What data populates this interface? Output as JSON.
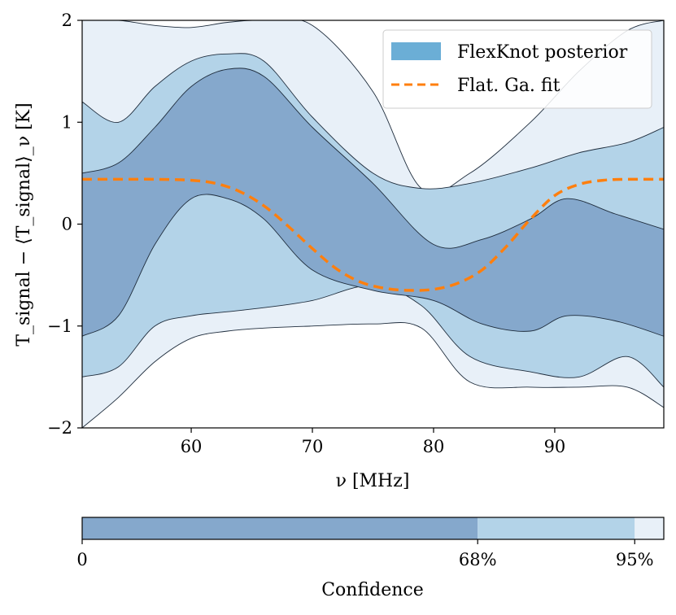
{
  "chart_data": [
    {
      "type": "area",
      "title": "",
      "xlabel": "ν [MHz]",
      "ylabel": "T_signal − ⟨T_signal⟩_ν [K]",
      "xlim": [
        51,
        99
      ],
      "ylim": [
        -2,
        2
      ],
      "xticks": [
        60,
        70,
        80,
        90
      ],
      "yticks": [
        -2,
        -1,
        0,
        1,
        2
      ],
      "ytick_labels": [
        "−2",
        "−1",
        "0",
        "1",
        "2"
      ],
      "grid": false,
      "legend_position": "top-right",
      "legend": [
        {
          "label": "FlexKnot posterior",
          "kind": "patch",
          "color": "#6baed6"
        },
        {
          "label": "Flat. Ga. fit",
          "kind": "dashed-line",
          "color": "#ff7f0e"
        }
      ],
      "series": [
        {
          "name": "Flat. Ga. fit",
          "color": "#ff7f0e",
          "style": "dashed",
          "x": [
            51,
            54,
            57,
            60,
            62,
            64,
            66,
            68,
            70,
            72,
            74,
            76,
            78,
            80,
            82,
            84,
            86,
            88,
            90,
            92,
            94,
            96,
            99
          ],
          "y": [
            0.44,
            0.44,
            0.44,
            0.43,
            0.4,
            0.32,
            0.18,
            -0.02,
            -0.24,
            -0.44,
            -0.57,
            -0.63,
            -0.65,
            -0.64,
            -0.58,
            -0.45,
            -0.22,
            0.05,
            0.28,
            0.39,
            0.43,
            0.44,
            0.44
          ]
        },
        {
          "name": "68% band",
          "color": "#85a8cc",
          "x": [
            51,
            54,
            57,
            60,
            63,
            66,
            70,
            75,
            80,
            84,
            88,
            91,
            95,
            99
          ],
          "upper": [
            0.5,
            0.6,
            0.95,
            1.35,
            1.52,
            1.45,
            0.95,
            0.4,
            -0.2,
            -0.15,
            0.05,
            0.25,
            0.1,
            -0.05
          ],
          "lower": [
            -1.1,
            -0.9,
            -0.2,
            0.25,
            0.25,
            0.05,
            -0.45,
            -0.65,
            -0.75,
            -0.98,
            -1.05,
            -0.9,
            -0.95,
            -1.1
          ]
        },
        {
          "name": "95% band",
          "color": "#b3d3e8",
          "x": [
            51,
            54,
            57,
            60,
            63,
            66,
            70,
            75,
            79,
            83,
            88,
            92,
            96,
            99
          ],
          "upper": [
            1.2,
            1.0,
            1.35,
            1.6,
            1.67,
            1.6,
            1.05,
            0.5,
            0.35,
            0.4,
            0.55,
            0.7,
            0.8,
            0.95
          ],
          "lower": [
            -1.5,
            -1.4,
            -1.0,
            -0.9,
            -0.86,
            -0.82,
            -0.75,
            -0.6,
            -0.8,
            -1.3,
            -1.45,
            -1.5,
            -1.3,
            -1.6
          ]
        },
        {
          "name": "outer band",
          "color": "#e8f0f8",
          "x": [
            51,
            54,
            57,
            60,
            63,
            66,
            70,
            75,
            79,
            83,
            88,
            92,
            96,
            99
          ],
          "upper": [
            2.0,
            2.0,
            1.95,
            1.93,
            1.98,
            2.0,
            1.95,
            1.3,
            0.35,
            0.5,
            1.0,
            1.5,
            1.9,
            2.0
          ],
          "lower": [
            -2.0,
            -1.7,
            -1.35,
            -1.12,
            -1.05,
            -1.02,
            -1.0,
            -0.98,
            -1.02,
            -1.55,
            -1.6,
            -1.6,
            -1.6,
            -1.8
          ]
        }
      ]
    },
    {
      "type": "bar",
      "orientation": "colorbar",
      "xlabel": "Confidence",
      "tick_labels": [
        "0",
        "68%",
        "95%"
      ],
      "segments": [
        {
          "from": 0,
          "to": 0.68,
          "color": "#85a8cc"
        },
        {
          "from": 0.68,
          "to": 0.95,
          "color": "#b3d3e8"
        },
        {
          "from": 0.95,
          "to": 1.0,
          "color": "#e8f0f8"
        }
      ]
    }
  ]
}
